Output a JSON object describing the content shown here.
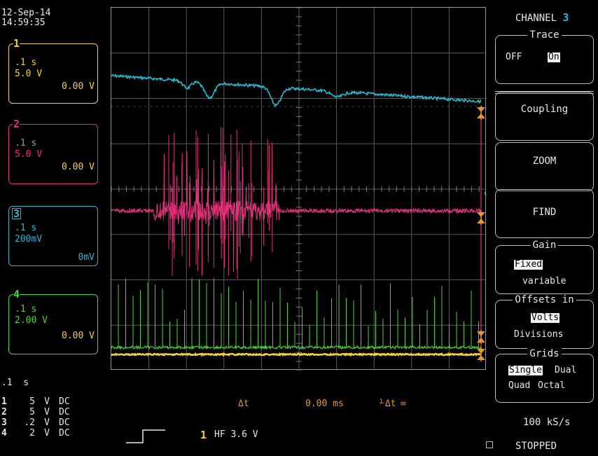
{
  "header": {
    "date": "12-Sep-14",
    "time": "14:59:35"
  },
  "channels": [
    {
      "num": "1",
      "timebase": ".1 s",
      "volts": "5.0 V",
      "offset": "0.00 V",
      "color": "#f2d23a"
    },
    {
      "num": "2",
      "timebase": ".1 s",
      "volts": "5.0 V",
      "offset": "0.00 V",
      "color": "#e0327a"
    },
    {
      "num": "3",
      "timebase": ".1 s",
      "volts": "200mV",
      "offset": "0mV",
      "color": "#29b7d0"
    },
    {
      "num": "4",
      "timebase": ".1 s",
      "volts": "2.00 V",
      "offset": "0.00 V",
      "color": "#4fd23c"
    }
  ],
  "bottom_left": {
    "timebase": ".1  s",
    "rows": [
      {
        "num": "1",
        "v": "5",
        "unit": "V",
        "coupling": "DC"
      },
      {
        "num": "2",
        "v": "5",
        "unit": "V",
        "coupling": "DC"
      },
      {
        "num": "3",
        "v": ".2",
        "unit": "V",
        "coupling": "DC"
      },
      {
        "num": "4",
        "v": "2",
        "unit": "V",
        "coupling": "DC"
      }
    ]
  },
  "measure": {
    "delta_t_label": "Δt",
    "delta_t_value": "0.00 ms",
    "inv_label": "⅟Δt",
    "inv_value": "∞"
  },
  "trigger": {
    "channel": "1",
    "text": "HF 3.6 V"
  },
  "menu": {
    "title": "CHANNEL",
    "channel": "3",
    "trace": {
      "title": "Trace",
      "off": "OFF",
      "on": "On"
    },
    "coupling": "Coupling",
    "zoom": "ZOOM",
    "find": "FIND",
    "gain": {
      "title": "Gain",
      "opt1": "Fixed",
      "opt2": "variable"
    },
    "offsets": {
      "title": "Offsets in",
      "opt1": "Volts",
      "opt2": "Divisions"
    },
    "grids": {
      "title": "Grids",
      "single": "Single",
      "dual": "Dual",
      "quad": "Quad",
      "octal": "Octal"
    },
    "sample_rate": "100 kS/s",
    "status": "STOPPED",
    "trace_label": "3"
  }
}
